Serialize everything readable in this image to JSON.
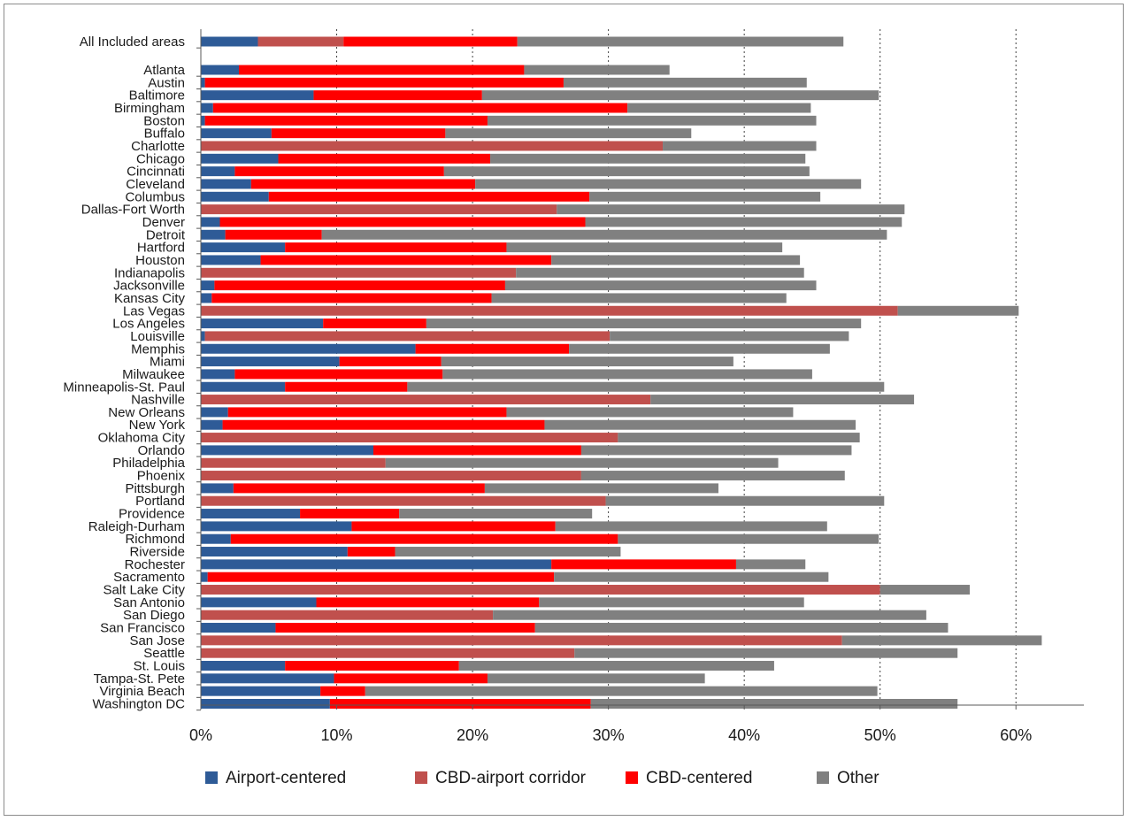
{
  "chart_data": {
    "type": "bar",
    "orientation": "horizontal",
    "stacked": true,
    "categories": [
      "All Included areas",
      "Atlanta",
      "Austin",
      "Baltimore",
      "Birmingham",
      "Boston",
      "Buffalo",
      "Charlotte",
      "Chicago",
      "Cincinnati",
      "Cleveland",
      "Columbus",
      "Dallas-Fort Worth",
      "Denver",
      "Detroit",
      "Hartford",
      "Houston",
      "Indianapolis",
      "Jacksonville",
      "Kansas City",
      "Las Vegas",
      "Los Angeles",
      "Louisville",
      "Memphis",
      "Miami",
      "Milwaukee",
      "Minneapolis-St. Paul",
      "Nashville",
      "New Orleans",
      "New York",
      "Oklahoma City",
      "Orlando",
      "Philadelphia",
      "Phoenix",
      "Pittsburgh",
      "Portland",
      "Providence",
      "Raleigh-Durham",
      "Richmond",
      "Riverside",
      "Rochester",
      "Sacramento",
      "Salt Lake City",
      "San Antonio",
      "San Diego",
      "San Francisco",
      "San Jose",
      "Seattle",
      "St. Louis",
      "Tampa-St. Pete",
      "Virginia Beach",
      "Washington DC"
    ],
    "series": [
      {
        "name": "Airport-centered",
        "color": "#2e5b97",
        "values": [
          4.2,
          2.8,
          0.3,
          8.3,
          0.9,
          0.3,
          5.2,
          0,
          5.7,
          2.5,
          3.7,
          5.0,
          0,
          1.4,
          1.8,
          6.2,
          4.4,
          0,
          1.0,
          0.8,
          0,
          9.0,
          0.3,
          15.8,
          10.2,
          2.5,
          6.2,
          0,
          2.0,
          1.6,
          0,
          12.7,
          0,
          0,
          2.4,
          0,
          7.3,
          11.1,
          2.2,
          10.8,
          25.8,
          0.5,
          0,
          8.5,
          0,
          5.5,
          0,
          0,
          6.2,
          9.8,
          8.8,
          9.5
        ]
      },
      {
        "name": "CBD-airport corridor",
        "color": "#c0504d",
        "values": [
          6.3,
          0,
          0,
          0,
          0,
          0,
          0,
          34.0,
          0,
          0,
          0,
          0,
          26.2,
          0,
          0,
          0,
          0,
          23.2,
          0,
          0,
          51.3,
          0,
          29.8,
          0,
          0,
          0,
          0,
          33.1,
          0,
          0,
          30.7,
          0,
          13.6,
          28.0,
          0,
          29.8,
          0,
          0,
          0,
          0,
          0,
          0,
          50.0,
          0,
          21.5,
          0,
          47.2,
          27.5,
          0,
          0,
          0,
          0
        ]
      },
      {
        "name": "CBD-centered",
        "color": "#ff0000",
        "values": [
          12.8,
          21.0,
          26.4,
          12.4,
          30.5,
          20.8,
          12.8,
          0,
          15.6,
          15.4,
          16.5,
          23.6,
          0,
          26.9,
          7.1,
          16.3,
          21.4,
          0,
          21.4,
          20.6,
          0,
          7.6,
          0,
          11.3,
          7.5,
          15.3,
          9.0,
          0,
          20.5,
          23.7,
          0,
          15.3,
          0,
          0,
          18.5,
          0,
          7.3,
          15.0,
          28.5,
          3.5,
          13.6,
          25.5,
          0,
          16.4,
          0,
          19.1,
          0,
          0,
          12.8,
          11.3,
          3.3,
          19.2
        ]
      },
      {
        "name": "Other",
        "color": "#808080",
        "values": [
          24.0,
          10.7,
          17.9,
          29.2,
          13.5,
          24.2,
          18.1,
          11.3,
          23.2,
          26.9,
          28.4,
          17.0,
          25.6,
          23.3,
          41.6,
          20.3,
          18.3,
          21.2,
          22.9,
          21.7,
          8.9,
          32.0,
          17.6,
          19.2,
          21.5,
          27.2,
          35.1,
          19.4,
          21.1,
          22.9,
          17.8,
          19.9,
          28.9,
          19.4,
          17.2,
          20.5,
          14.2,
          20.0,
          19.2,
          16.6,
          5.1,
          20.2,
          6.6,
          19.5,
          31.9,
          30.4,
          14.7,
          28.2,
          23.2,
          16.0,
          37.7,
          27.0
        ]
      }
    ],
    "xlim": [
      0,
      65
    ],
    "xticks": [
      "0%",
      "10%",
      "20%",
      "30%",
      "40%",
      "50%",
      "60%"
    ],
    "xtick_values": [
      0,
      10,
      20,
      30,
      40,
      50,
      60
    ],
    "grid": "vertical dotted",
    "legend_position": "bottom",
    "title": "",
    "xlabel": "",
    "ylabel": ""
  }
}
